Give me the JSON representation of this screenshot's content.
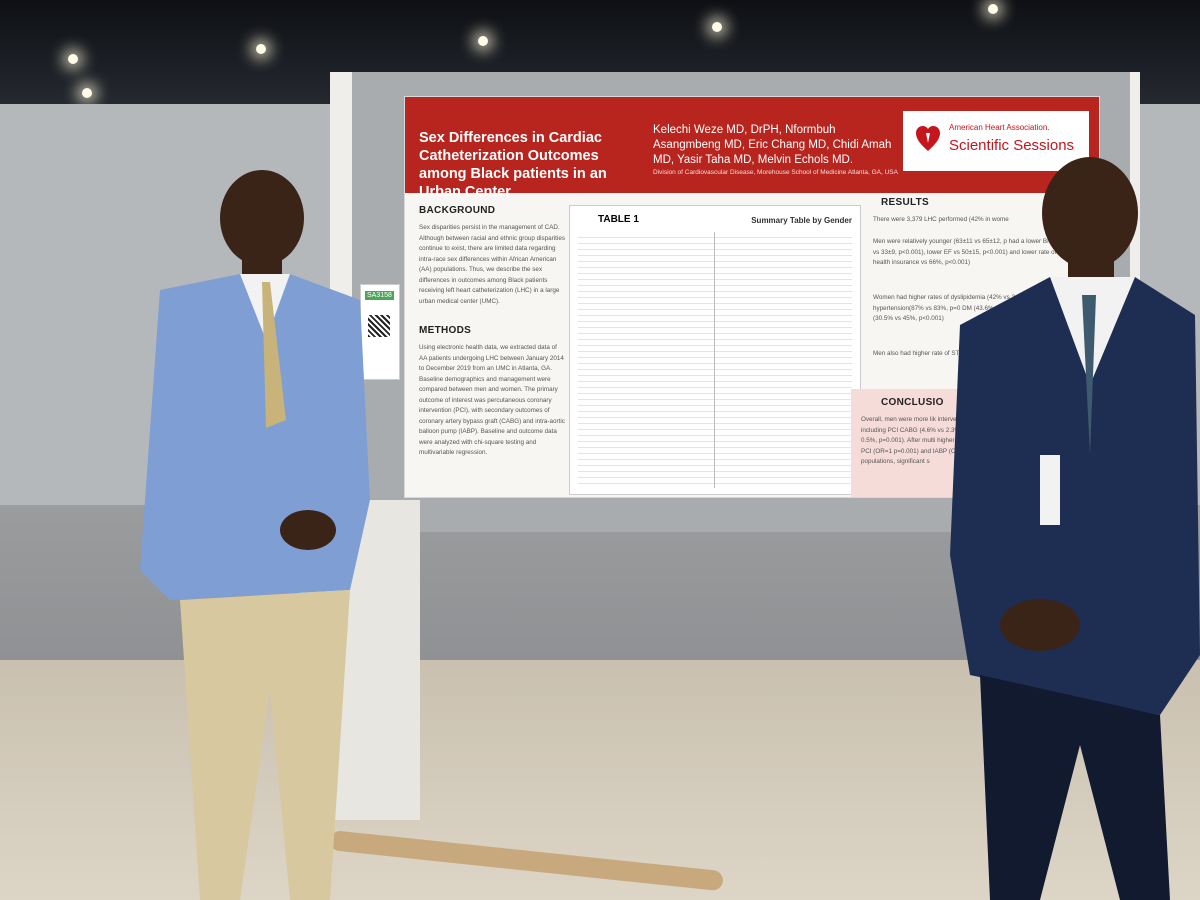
{
  "poster": {
    "title": "Sex Differences in Cardiac Catheterization Outcomes among Black patients in an Urban Center",
    "authors": "Kelechi Weze MD, DrPH, Nformbuh Asangmbeng MD, Eric Chang MD, Chidi Amah MD, Yasir Taha MD, Melvin Echols MD.",
    "affiliation": "Division of Cardiovascular Disease, Morehouse School of Medicine Atlanta, GA, USA",
    "logo_org": "American Heart Association.",
    "logo_event": "Scientific Sessions",
    "background_title": "BACKGROUND",
    "background_text": "Sex disparities persist in the management of CAD. Although between racial and ethnic group disparities continue to exist, there are limited data regarding intra-race sex differences within African American (AA) populations. Thus, we describe the sex differences in outcomes among Black patients receiving left heart catheterization (LHC) in a large urban medical center (UMC).",
    "methods_title": "METHODS",
    "methods_text": "Using electronic health data, we extracted data of AA patients undergoing LHC between January 2014 to December 2019 from an UMC in Atlanta, GA. Baseline demographics and management were compared between men and women. The primary outcome of interest was percutaneous coronary intervention (PCI), with secondary outcomes of coronary artery bypass graft (CABG) and intra-aortic balloon pump (IABP). Baseline and outcome data were analyzed with chi-square testing and multivariable regression.",
    "table_title": "TABLE 1",
    "table_caption": "Summary Table by Gender",
    "results_title": "RESULTS",
    "results_text": "There were 3,379 LHC performed (42% in wome",
    "results_men": "Men were relatively younger (63±11 vs 65±12, p had a lower BMI (29±8 vs 33±9, p<0.001), lower EF vs 50±15, p<0.001) and lower rate of health insurance vs 66%, p<0.001)",
    "results_women": "Women had higher rates of dyslipidemia (42% vs 3 p<0.001), hypertension(87% vs 83%, p=0 DM (43.6% vs 33.6%, p<0.001) but (30.5% vs 45%, p<0.001)",
    "results_men2": "Men also had higher rate of ST NSTEMI 29.6% vs 28.7% (P",
    "conclusion_title": "CONCLUSIO",
    "conclusion_text": "Overall, men were more lik intervention including PCI CABG (4.6% vs 2.3%, p 0.5%, p=0.001). After multi higher odds of PCI (OR=1 p=0.001) and IABP (OR= populations, significant s"
  },
  "board_tag": "SA3158"
}
